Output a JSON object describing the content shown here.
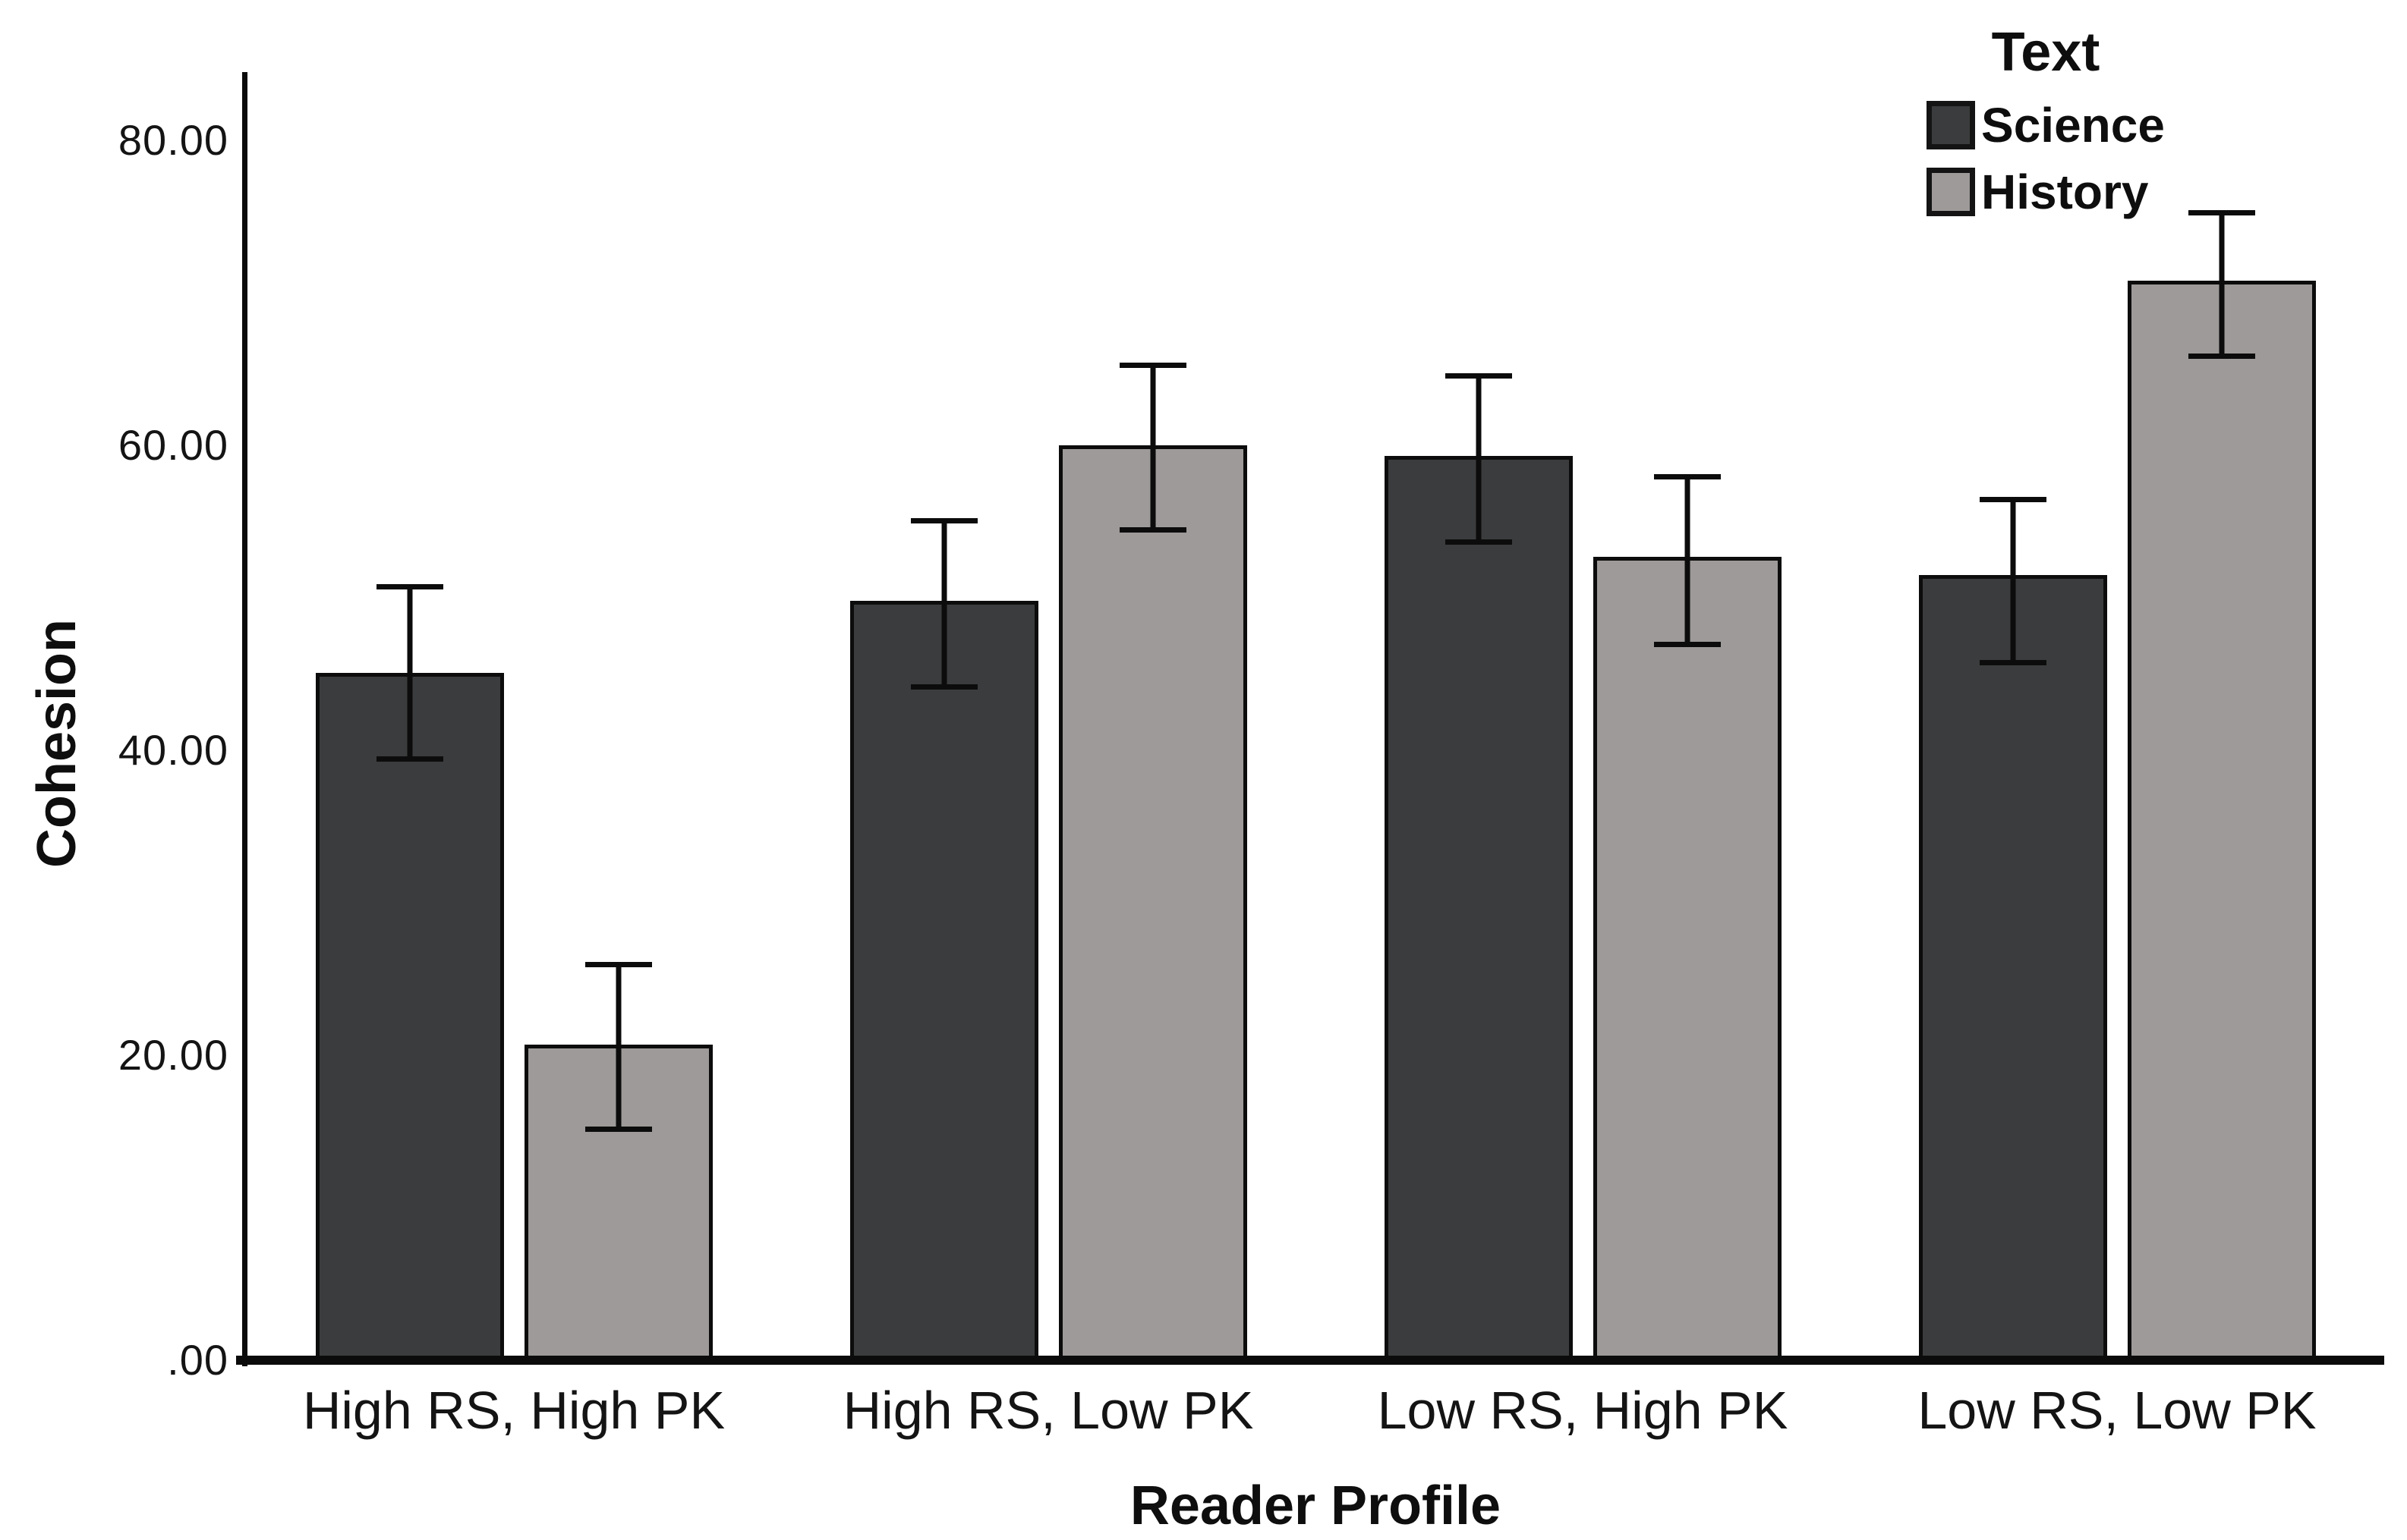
{
  "chart_data": {
    "type": "bar",
    "title": "",
    "xlabel": "Reader Profile",
    "ylabel": "Cohesion",
    "categories": [
      "High RS, High PK",
      "High RS, Low PK",
      "Low RS, High PK",
      "Low RS, Low PK"
    ],
    "series": [
      {
        "name": "Science",
        "color": "#3b3c3d",
        "values": [
          45.1,
          49.8,
          59.3,
          51.5
        ],
        "ci_low": [
          39.7,
          44.4,
          53.9,
          46.0
        ],
        "ci_high": [
          51.0,
          55.3,
          64.8,
          56.7
        ]
      },
      {
        "name": "History",
        "color": "#9d9a99",
        "values": [
          20.7,
          60.0,
          52.7,
          70.8
        ],
        "ci_low": [
          15.4,
          54.7,
          47.2,
          66.1
        ],
        "ci_high": [
          26.2,
          65.5,
          58.2,
          75.5
        ]
      }
    ],
    "y_ticks": [
      {
        "label": ".00",
        "value": 0
      },
      {
        "label": "20.00",
        "value": 20
      },
      {
        "label": "40.00",
        "value": 40
      },
      {
        "label": "60.00",
        "value": 60
      },
      {
        "label": "80.00",
        "value": 80
      }
    ],
    "ylim": [
      0,
      84.5
    ],
    "grid": false,
    "error_bars": true,
    "legend": {
      "title": "Text",
      "position": "top-right"
    }
  },
  "colors": {
    "axis": "#0b0b0b",
    "background": "#ffffff",
    "text": "#111111"
  }
}
